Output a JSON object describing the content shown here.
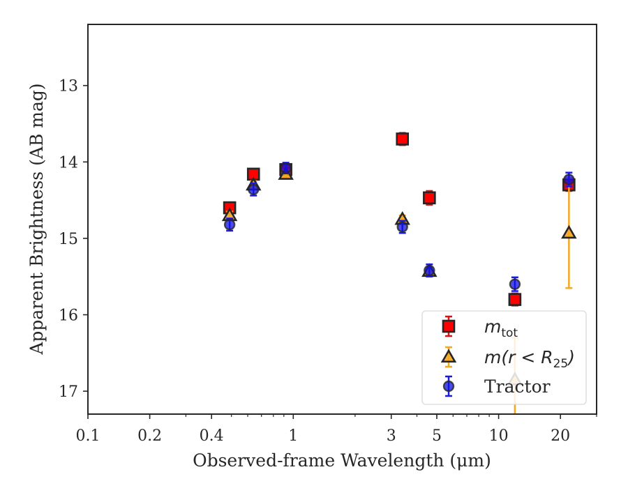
{
  "chart_data": {
    "type": "scatter",
    "xlabel": "Observed-frame Wavelength (μm)",
    "ylabel": "Apparent Brightness (AB mag)",
    "xscale": "log",
    "xlim": [
      0.1,
      30
    ],
    "ylim": [
      17.3,
      12.2
    ],
    "y_inverted": true,
    "grid": false,
    "legend_position": "bottom-right",
    "x_ticks": [
      0.1,
      0.2,
      0.4,
      1,
      3,
      5,
      10,
      20
    ],
    "x_tick_labels": [
      "0.1",
      "0.2",
      "0.4",
      "1",
      "3",
      "5",
      "10",
      "20"
    ],
    "y_ticks": [
      13,
      14,
      15,
      16,
      17
    ],
    "y_tick_labels": [
      "13",
      "14",
      "15",
      "16",
      "17"
    ],
    "series": [
      {
        "name": "m_tot",
        "legend_label": "m",
        "legend_sub": "tot",
        "marker": "square",
        "color": "#ff0000",
        "ecolor": "#e01010",
        "points": [
          {
            "x": 0.49,
            "y": 14.6,
            "err": 0.07
          },
          {
            "x": 0.64,
            "y": 14.16,
            "err": 0.07
          },
          {
            "x": 0.92,
            "y": 14.1,
            "err": 0.07
          },
          {
            "x": 3.4,
            "y": 13.7,
            "err": 0.08
          },
          {
            "x": 4.6,
            "y": 14.47,
            "err": 0.09
          },
          {
            "x": 12.0,
            "y": 15.8,
            "err": 0.08
          },
          {
            "x": 22.0,
            "y": 14.3,
            "err": 0.08
          }
        ]
      },
      {
        "name": "m(r<R25)",
        "legend_label": "m(r < R",
        "legend_sub": "25",
        "legend_tail": ")",
        "marker": "triangle",
        "color": "#f5a623",
        "ecolor": "#f5a623",
        "points": [
          {
            "x": 0.49,
            "y": 14.7,
            "err": 0.05
          },
          {
            "x": 0.64,
            "y": 14.3,
            "err": 0.05
          },
          {
            "x": 0.92,
            "y": 14.16,
            "err": 0.05
          },
          {
            "x": 3.4,
            "y": 14.75,
            "err": 0.05
          },
          {
            "x": 4.6,
            "y": 15.43,
            "err": 0.05
          },
          {
            "x": 12.0,
            "y": 16.85,
            "err": 0.55
          },
          {
            "x": 22.0,
            "y": 14.93,
            "err": 0.72
          }
        ]
      },
      {
        "name": "Tractor",
        "legend_label": "Tractor",
        "marker": "circle",
        "color": "#1010e0",
        "ecolor": "#1a1ae6",
        "points": [
          {
            "x": 0.49,
            "y": 14.82,
            "err": 0.08
          },
          {
            "x": 0.64,
            "y": 14.36,
            "err": 0.08
          },
          {
            "x": 0.92,
            "y": 14.08,
            "err": 0.07
          },
          {
            "x": 3.4,
            "y": 14.85,
            "err": 0.08
          },
          {
            "x": 4.6,
            "y": 15.42,
            "err": 0.08
          },
          {
            "x": 12.0,
            "y": 15.6,
            "err": 0.09
          },
          {
            "x": 22.0,
            "y": 14.23,
            "err": 0.09
          }
        ]
      }
    ]
  }
}
